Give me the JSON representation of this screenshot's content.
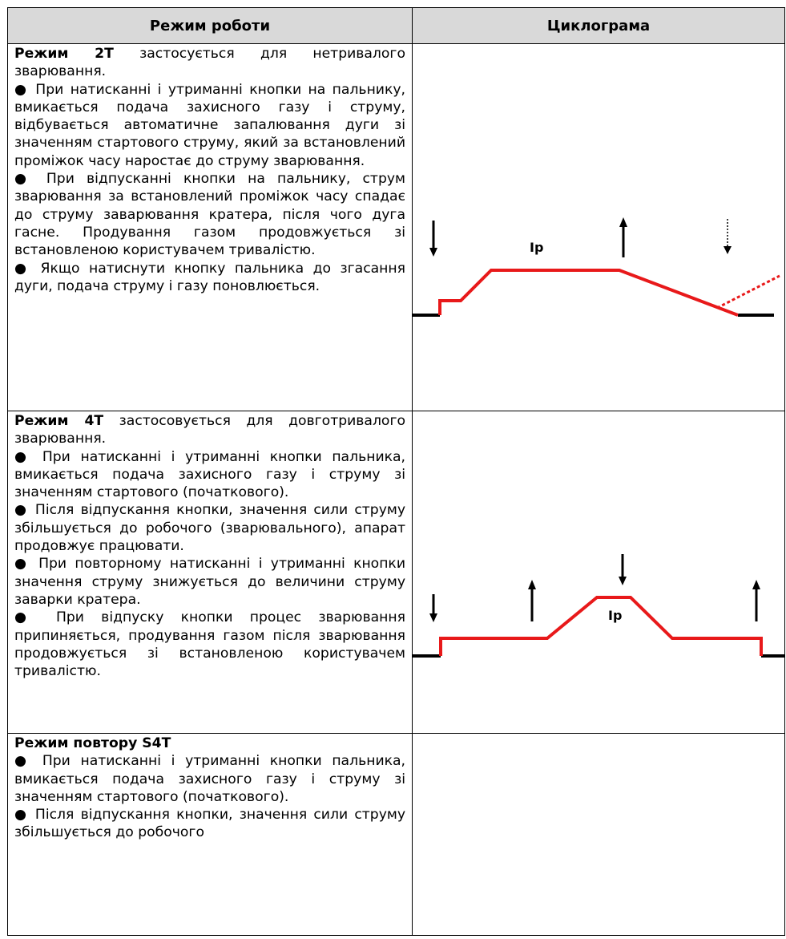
{
  "table": {
    "headers": [
      "Режим роботи",
      "Циклограма"
    ],
    "rows": [
      {
        "title": "Режим 2Т",
        "intro": " застосується для нетривалого зварювання.",
        "paragraphs": [
          "● При натисканні і утриманні кнопки на пальнику, вмикається подача захисного газу і струму, відбувається автоматичне запалювання дуги зі значенням стартового струму, який за встановлений проміжок часу наростає до струму зварювання.",
          "● При відпусканні кнопки на пальнику, струм зварювання за встановлений проміжок часу спадає до струму заварювання кратера, після чого дуга гасне. Продування газом продовжується зі встановленою користувачем тривалістю.",
          "● Якщо натиснути кнопку пальника до згасання дуги, подача струму і газу поновлюється."
        ],
        "diagram_label": "Iр"
      },
      {
        "title": "Режим 4Т",
        "intro": " застосовується для довготривалого зварювання.",
        "paragraphs": [
          "● При натисканні і утриманні кнопки пальника, вмикається подача захисного газу і струму зі значенням стартового (початкового).",
          "● Після відпускання кнопки, значення сили струму збільшується до робочого (зварювального), апарат продовжує працювати.",
          "● При повторному натисканні і утриманні кнопки значення струму знижується до величини струму заварки кратера.",
          "● При відпуску кнопки процес зварювання припиняється, продування газом після зварювання продовжується зі встановленою користувачем тривалістю."
        ],
        "diagram_label": "Iр"
      },
      {
        "title": "Режим повтору S4T",
        "intro": "",
        "paragraphs": [
          "● При натисканні і утриманні кнопки пальника, вмикається подача захисного газу і струму зі значенням стартового (початкового).",
          "● Після відпускання кнопки, значення сили струму збільшується до робочого"
        ]
      }
    ]
  },
  "colors": {
    "header_bg": "#d9d9d9",
    "curve": "#e8191a",
    "line": "#000000"
  }
}
